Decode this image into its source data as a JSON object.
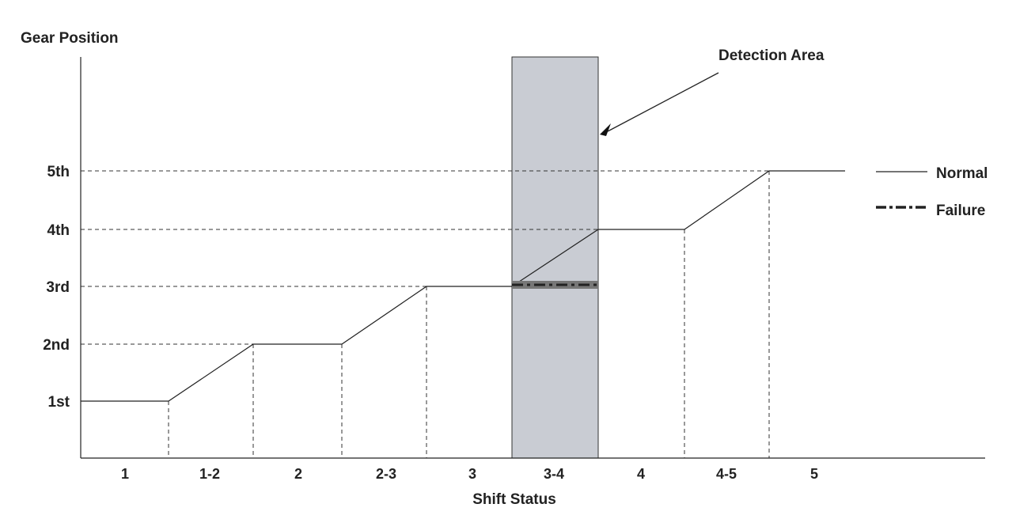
{
  "chart_data": {
    "type": "line",
    "ylabel": "Gear Position",
    "xlabel": "Shift Status",
    "y_ticks": [
      "1st",
      "2nd",
      "3rd",
      "4th",
      "5th"
    ],
    "categories": [
      "1",
      "1-2",
      "2",
      "2-3",
      "3",
      "3-4",
      "4",
      "4-5",
      "5"
    ],
    "series": [
      {
        "name": "Normal",
        "x": [
          "1",
          "1-2",
          "2",
          "2-3",
          "3",
          "3-4",
          "4",
          "4-5",
          "5"
        ],
        "y": [
          "1st",
          "1st→2nd",
          "2nd",
          "2nd→3rd",
          "3rd",
          "3rd→4th",
          "4th",
          "4th→5th",
          "5th"
        ]
      },
      {
        "name": "Failure",
        "x": [
          "3-4"
        ],
        "y": [
          "3rd"
        ]
      }
    ],
    "annotation": "Detection Area",
    "highlight_category": "3-4",
    "colors": {
      "line": "#222222",
      "highlight": "#c9ccd3",
      "failure": "#333333"
    },
    "grid": "dashed guides"
  }
}
